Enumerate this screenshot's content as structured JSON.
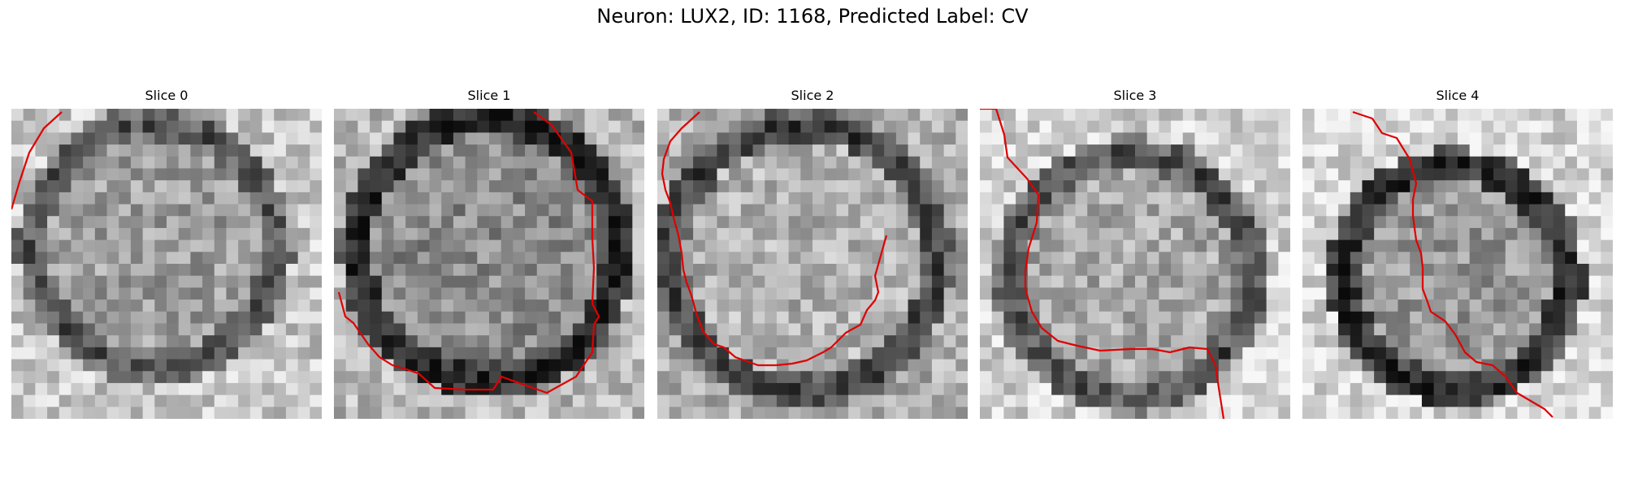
{
  "figure": {
    "title": "Neuron: LUX2, ID: 1168, Predicted Label: CV"
  },
  "panels": [
    {
      "title": "Slice 0"
    },
    {
      "title": "Slice 1"
    },
    {
      "title": "Slice 2"
    },
    {
      "title": "Slice 3"
    },
    {
      "title": "Slice 4"
    }
  ],
  "contour_color": "#e00000"
}
